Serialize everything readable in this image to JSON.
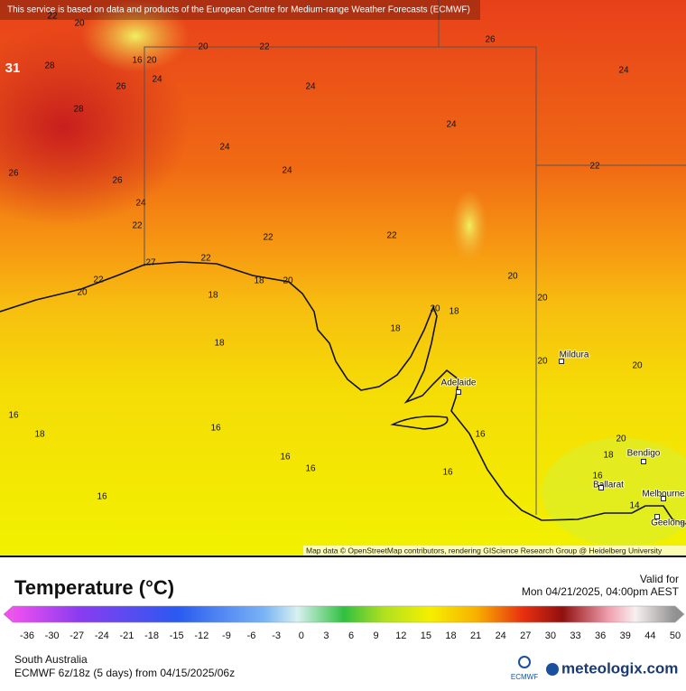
{
  "header": {
    "notice": "This service is based on data and products of the European Centre for Medium-range Weather Forecasts (ECMWF)"
  },
  "map": {
    "max_label": 31,
    "contour_labels": [
      20,
      22,
      20,
      22,
      26,
      24,
      16,
      20,
      28,
      24,
      26,
      24,
      28,
      24,
      24,
      22,
      24,
      26,
      26,
      24,
      22,
      22,
      22,
      27,
      22,
      22,
      20,
      18,
      20,
      18,
      20,
      20,
      20,
      18,
      18,
      18,
      20,
      20,
      16,
      18,
      16,
      16,
      16,
      16,
      16,
      16,
      20,
      18,
      16,
      14
    ],
    "places": [
      "Mildura",
      "Adelaide",
      "Bendigo",
      "Ballarat",
      "Melbourne",
      "Geelong"
    ],
    "attribution": "Map data © OpenStreetMap contributors, rendering GIScience Research Group @ Heidelberg University"
  },
  "legend": {
    "title": "Temperature (°C)",
    "valid_label": "Valid for",
    "valid_time": "Mon 04/21/2025, 04:00pm AEST",
    "ticks": [
      -36,
      -30,
      -27,
      -24,
      -21,
      -18,
      -15,
      -12,
      -9,
      -6,
      -3,
      0,
      3,
      6,
      9,
      12,
      15,
      18,
      21,
      24,
      27,
      30,
      33,
      36,
      39,
      44,
      50
    ]
  },
  "footer": {
    "region": "South Australia",
    "model_run": "ECMWF 6z/18z (5 days) from 04/15/2025/06z",
    "ecmwf_logo": "ECMWF",
    "brand": "meteologix.com"
  }
}
